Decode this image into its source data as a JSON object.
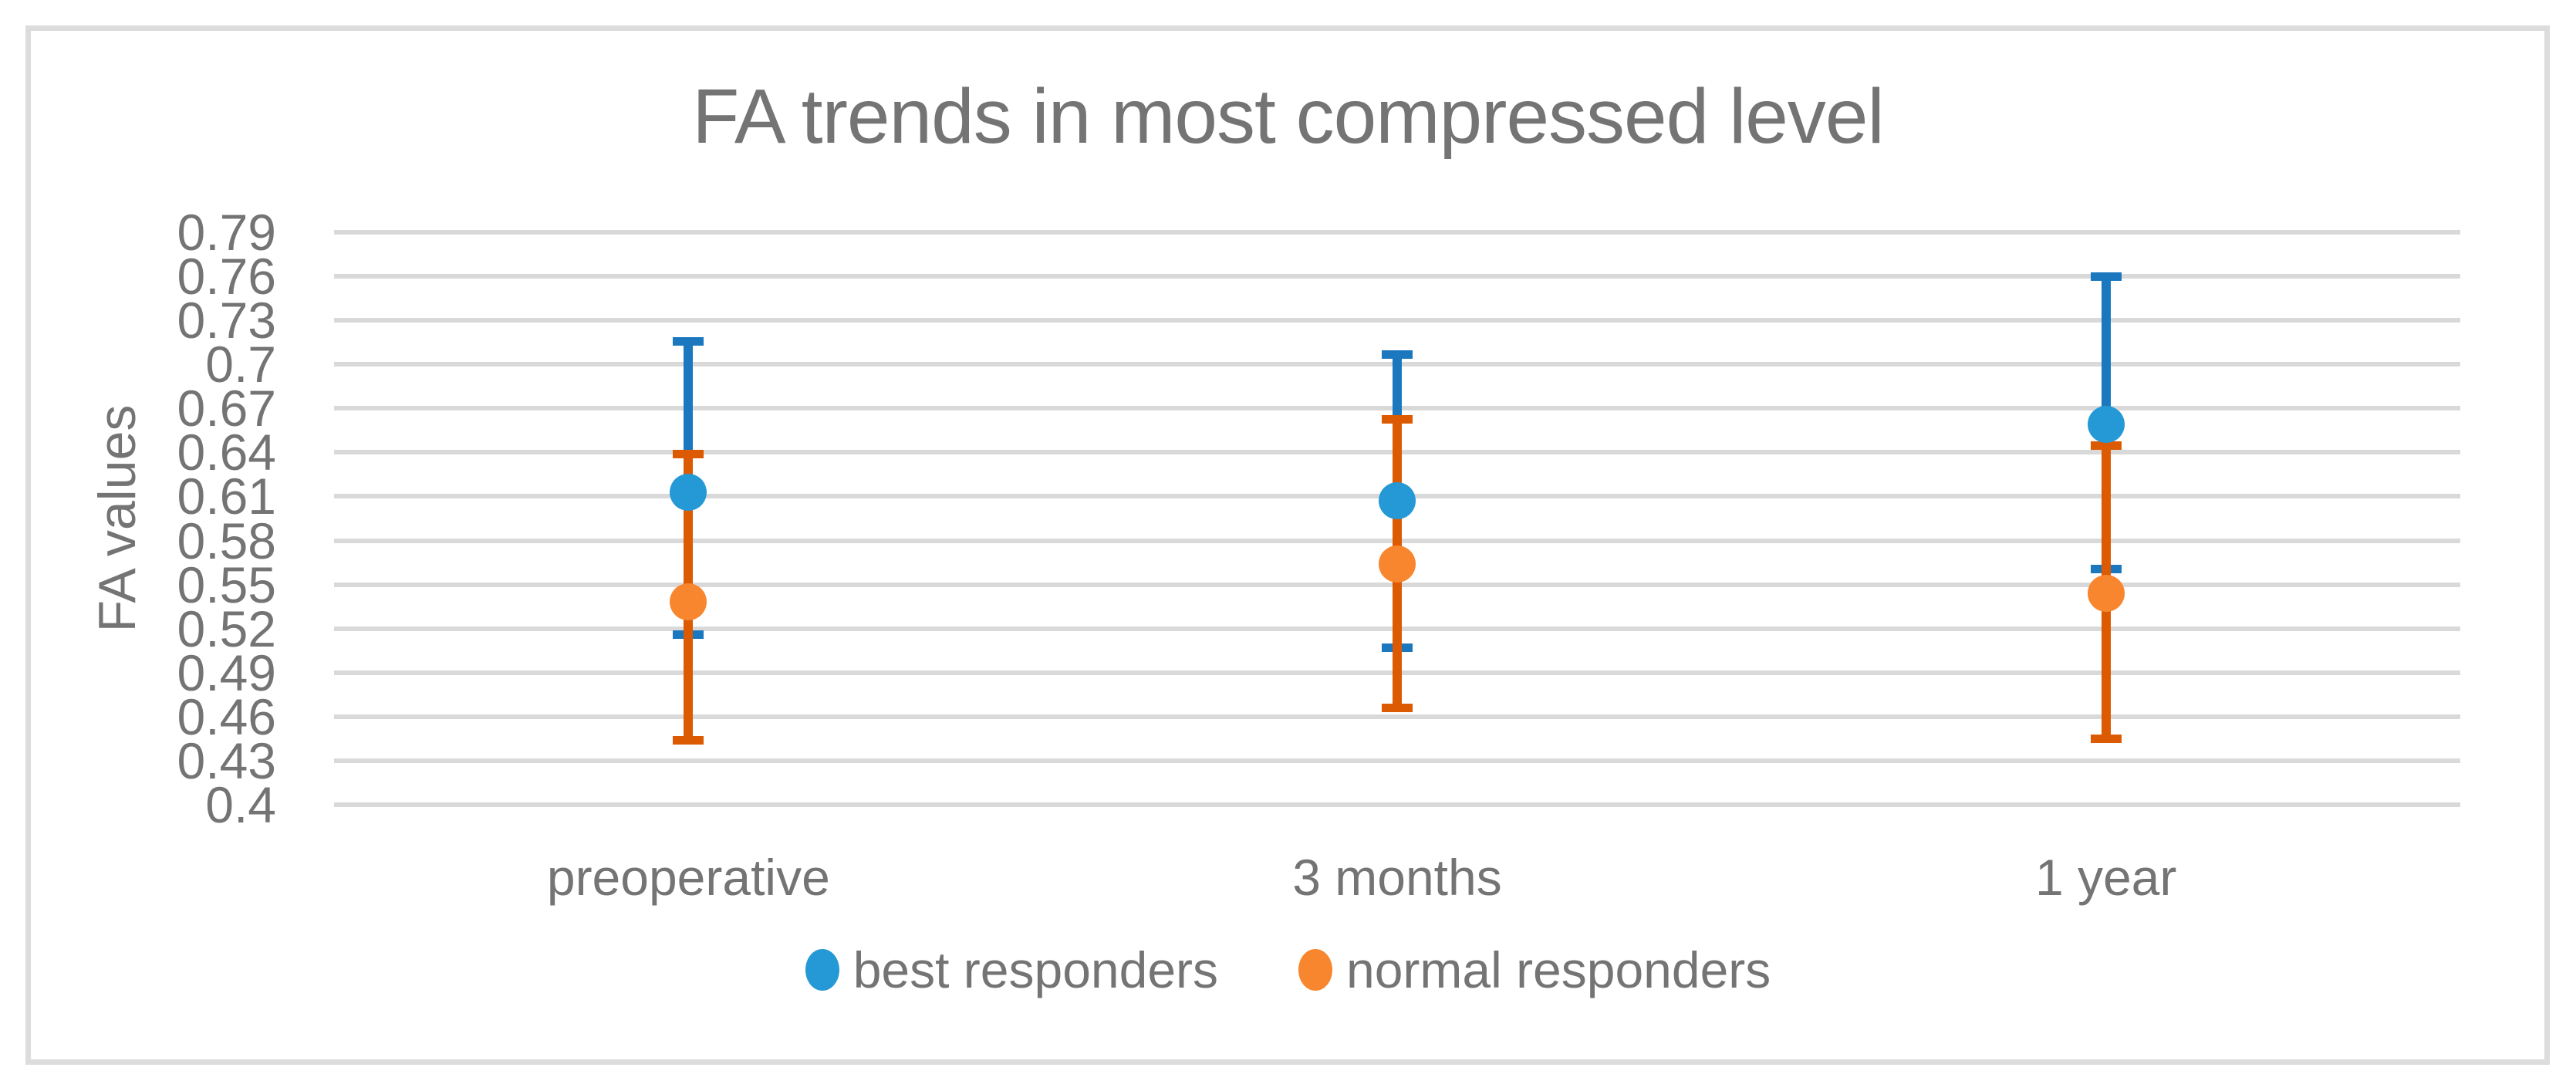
{
  "figure": {
    "background": "#ffffff",
    "text_color": "#747474",
    "gridline_color": "#d9d9d9",
    "frame_color": "#dcdcdc"
  },
  "chart_data": {
    "type": "scatter",
    "title": "FA trends in most compressed level",
    "ylabel": "FA values",
    "xlabel": "",
    "categories": [
      "preoperative",
      "3 months",
      "1 year"
    ],
    "ylim": [
      0.4,
      0.79
    ],
    "y_tick_labels": [
      "0.79",
      "0.76",
      "0.73",
      "0.7",
      "0.67",
      "0.64",
      "0.61",
      "0.58",
      "0.55",
      "0.52",
      "0.49",
      "0.46",
      "0.43",
      "0.4"
    ],
    "grid": true,
    "legend_position": "bottom",
    "series": [
      {
        "name": "best responders",
        "marker_color": "#2499d6",
        "errorbar_color": "#1b78be",
        "values": [
          0.613,
          0.607,
          0.659
        ],
        "error_upper": [
          0.716,
          0.707,
          0.76
        ],
        "error_lower": [
          0.516,
          0.507,
          0.561
        ]
      },
      {
        "name": "normal responders",
        "marker_color": "#f7862e",
        "errorbar_color": "#dc5a02",
        "values": [
          0.538,
          0.564,
          0.544
        ],
        "error_upper": [
          0.639,
          0.663,
          0.645
        ],
        "error_lower": [
          0.444,
          0.466,
          0.445
        ]
      }
    ]
  }
}
